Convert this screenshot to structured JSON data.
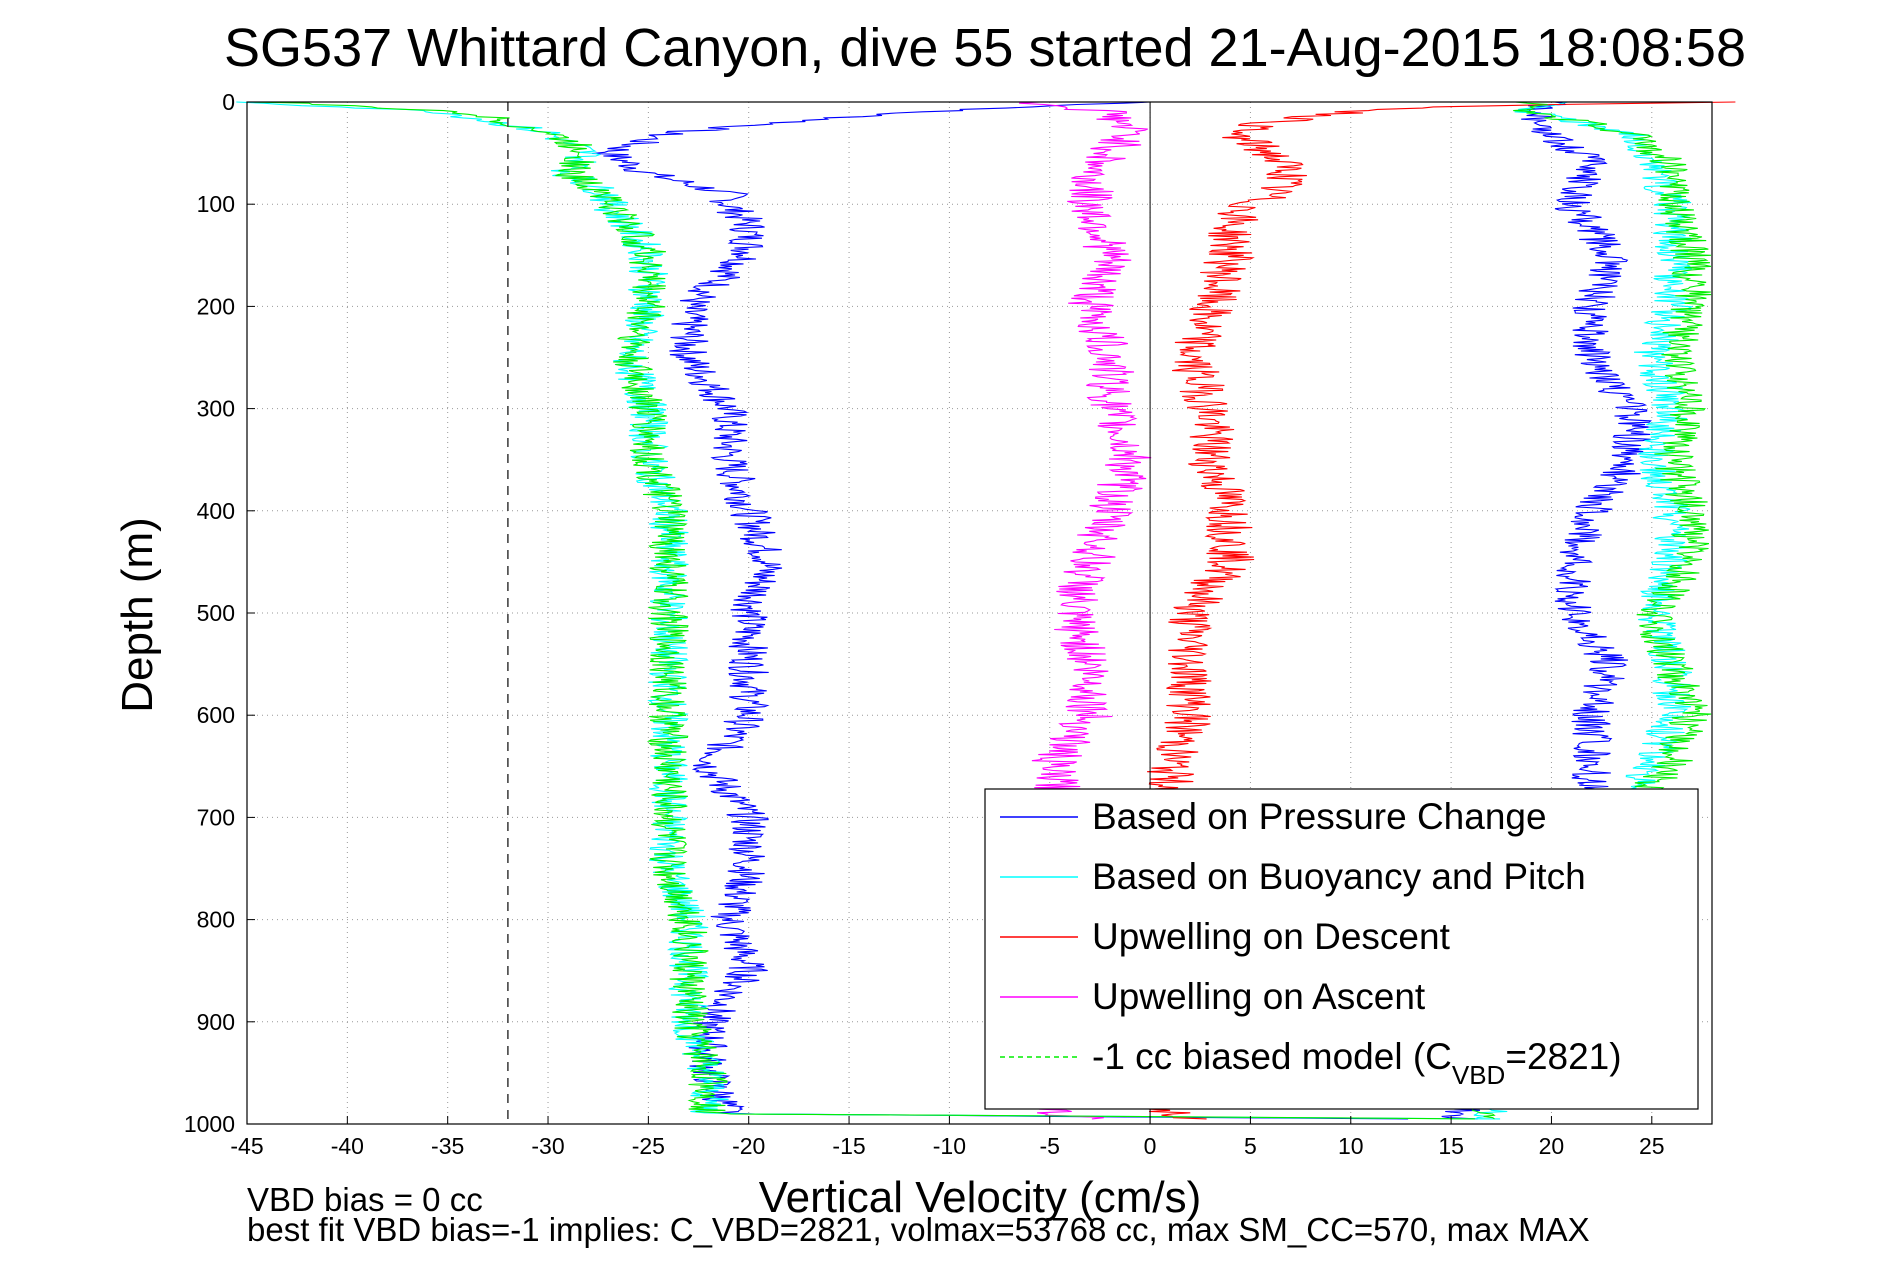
{
  "chart_data": {
    "type": "line",
    "title": "SG537 Whittard Canyon, dive 55 started 21-Aug-2015 18:08:58",
    "xlabel": "Vertical Velocity (cm/s)",
    "ylabel": "Depth (m)",
    "xlim": [
      -45,
      28
    ],
    "ylim": [
      0,
      1000
    ],
    "y_reversed": true,
    "grid": true,
    "legend_position": "bottom-right",
    "x_ticks": [
      "-45",
      "-40",
      "-35",
      "-30",
      "-25",
      "-20",
      "-15",
      "-10",
      "-5",
      "0",
      "5",
      "10",
      "15",
      "20",
      "25"
    ],
    "y_ticks": [
      "0",
      "100",
      "200",
      "300",
      "400",
      "500",
      "600",
      "700",
      "800",
      "900",
      "1000"
    ],
    "reference_lines": {
      "vertical_zero": 0,
      "vbd_bias_dashed_x": -32
    },
    "series": [
      {
        "name": "Based on Pressure Change",
        "color": "#0000ff",
        "style": "solid",
        "legend_label": "Based on Pressure Change",
        "descent": {
          "depth": [
            0,
            10,
            30,
            50,
            70,
            90,
            100,
            120,
            150,
            200,
            250,
            300,
            350,
            400,
            450,
            500,
            550,
            600,
            650,
            700,
            750,
            800,
            850,
            900,
            950,
            990,
            995
          ],
          "velocity": [
            0,
            -12,
            -24,
            -27,
            -25,
            -21,
            -21,
            -20,
            -20,
            -23,
            -23,
            -21,
            -21,
            -20,
            -19,
            -20,
            -20,
            -20,
            -22,
            -20,
            -20,
            -21,
            -20,
            -22,
            -22,
            -21,
            12
          ]
        },
        "ascent": {
          "depth": [
            995,
            990,
            950,
            900,
            850,
            800,
            750,
            700,
            650,
            600,
            550,
            500,
            450,
            400,
            350,
            300,
            250,
            200,
            150,
            100,
            60,
            30,
            10,
            0
          ],
          "velocity": [
            16,
            15,
            21,
            22,
            22,
            22,
            22,
            22,
            22,
            22,
            23,
            21,
            21,
            22,
            24,
            24,
            22,
            22,
            23,
            21,
            22,
            20,
            19,
            20
          ]
        }
      },
      {
        "name": "Based on Buoyancy and Pitch",
        "color": "#00ffff",
        "style": "solid",
        "legend_label": "Based on Buoyancy and Pitch",
        "descent": {
          "depth": [
            0,
            10,
            30,
            50,
            70,
            90,
            100,
            120,
            150,
            200,
            250,
            300,
            350,
            400,
            450,
            500,
            550,
            600,
            650,
            700,
            750,
            800,
            850,
            900,
            950,
            990,
            995
          ],
          "velocity": [
            -45,
            -35,
            -30,
            -28,
            -29,
            -27,
            -27,
            -26,
            -25,
            -25,
            -26,
            -25,
            -25,
            -24,
            -24,
            -24,
            -24,
            -24,
            -24,
            -24,
            -24,
            -23,
            -23,
            -23,
            -22,
            -22,
            17
          ]
        },
        "ascent": {
          "depth": [
            995,
            990,
            950,
            900,
            850,
            800,
            750,
            700,
            650,
            600,
            550,
            500,
            450,
            400,
            350,
            300,
            250,
            200,
            150,
            100,
            60,
            30,
            10,
            0
          ],
          "velocity": [
            17,
            17,
            17,
            17,
            17,
            17,
            17,
            23,
            25,
            26,
            26,
            25,
            26,
            26,
            25,
            26,
            25,
            26,
            26,
            26,
            25,
            24,
            19,
            20
          ]
        }
      },
      {
        "name": "Upwelling on Descent",
        "color": "#ff0000",
        "style": "solid",
        "legend_label": "Upwelling on Descent",
        "depth": [
          0,
          5,
          10,
          20,
          30,
          50,
          70,
          90,
          100,
          120,
          150,
          200,
          250,
          300,
          350,
          400,
          450,
          500,
          550,
          600,
          650,
          700,
          750,
          800,
          850,
          900,
          950,
          990,
          995
        ],
        "velocity": [
          28,
          14,
          10,
          6,
          4,
          6,
          7,
          6,
          5,
          4,
          4,
          3,
          2,
          3,
          3,
          4,
          4,
          2,
          2,
          2,
          1,
          1,
          1,
          1,
          1,
          1,
          1,
          1,
          2
        ]
      },
      {
        "name": "Upwelling on Ascent",
        "color": "#ff00ff",
        "style": "solid",
        "legend_label": "Upwelling on Ascent",
        "depth": [
          0,
          10,
          30,
          50,
          70,
          90,
          100,
          150,
          200,
          250,
          300,
          350,
          400,
          450,
          500,
          550,
          600,
          650,
          700,
          750,
          800,
          850,
          900,
          950,
          990,
          995
        ],
        "velocity": [
          -6,
          -2,
          -1,
          -2,
          -3,
          -3,
          -3,
          -2,
          -3,
          -2,
          -2,
          -1,
          -2,
          -3,
          -4,
          -3,
          -3,
          -5,
          -4,
          -4,
          -4,
          -4,
          -4,
          -4,
          -5,
          -3
        ]
      },
      {
        "name": "-1 cc biased model",
        "color": "#00ee00",
        "style": "dashed",
        "legend_label": "-1 cc biased model (C",
        "legend_subscript": "VBD",
        "legend_suffix": "=2821)",
        "descent": {
          "depth": [
            0,
            10,
            30,
            50,
            70,
            90,
            100,
            120,
            150,
            200,
            250,
            300,
            350,
            400,
            450,
            500,
            550,
            600,
            650,
            700,
            750,
            800,
            850,
            900,
            950,
            990,
            995
          ],
          "velocity": [
            -44,
            -34,
            -30,
            -28,
            -29,
            -27,
            -27,
            -26,
            -25,
            -25,
            -26,
            -25,
            -25,
            -24,
            -24,
            -24,
            -24,
            -24,
            -24,
            -24,
            -24,
            -23,
            -23,
            -23,
            -22,
            -22,
            17
          ]
        },
        "ascent": {
          "depth": [
            995,
            990,
            950,
            900,
            850,
            800,
            750,
            700,
            650,
            600,
            550,
            500,
            450,
            400,
            350,
            300,
            250,
            200,
            150,
            100,
            60,
            30,
            10,
            0
          ],
          "velocity": [
            18,
            17,
            17,
            17,
            17,
            17,
            17,
            23,
            26,
            27,
            26,
            25,
            27,
            27,
            26,
            27,
            26,
            27,
            27,
            26,
            26,
            24,
            19,
            19
          ]
        }
      }
    ]
  },
  "notes": {
    "vbd_bias": "VBD bias = 0 cc",
    "best_fit": "best fit VBD bias=-1 implies: C_VBD=2821, volmax=53768 cc, max SM_CC=570, max MAX"
  }
}
